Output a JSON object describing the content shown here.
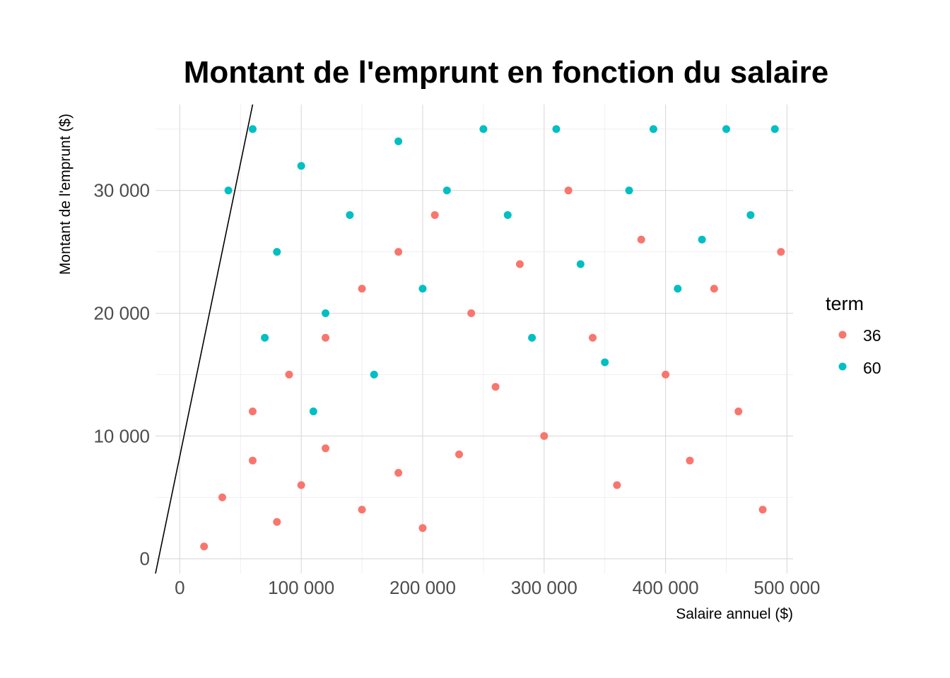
{
  "chart_data": {
    "type": "scatter",
    "title": "Montant de l'emprunt en fonction du salaire",
    "xlabel": "Salaire annuel ($)",
    "ylabel": "Montant de l'emprunt ($)",
    "xlim": [
      -20000,
      505000
    ],
    "ylim": [
      -1200,
      37000
    ],
    "x_ticks": [
      0,
      100000,
      200000,
      300000,
      400000,
      500000
    ],
    "x_tick_labels": [
      "0",
      "100 000",
      "200 000",
      "300 000",
      "400 000",
      "500 000"
    ],
    "y_ticks": [
      0,
      10000,
      20000,
      30000
    ],
    "y_tick_labels": [
      "0",
      "10 000",
      "20 000",
      "30 000"
    ],
    "grid": true,
    "legend": {
      "title": "term",
      "position": "right",
      "entries": [
        {
          "label": "36",
          "color": "#F8766D"
        },
        {
          "label": "60",
          "color": "#00BFC4"
        }
      ]
    },
    "reference_line": {
      "description": "droite noire",
      "points": [
        [
          -20000,
          -1200
        ],
        [
          60000,
          37000
        ]
      ],
      "color": "#000000"
    },
    "series": [
      {
        "name": "36",
        "color": "#F8766D",
        "values": [
          [
            20000,
            1000
          ],
          [
            35000,
            5000
          ],
          [
            60000,
            8000
          ],
          [
            80000,
            3000
          ],
          [
            100000,
            6000
          ],
          [
            120000,
            9000
          ],
          [
            150000,
            4000
          ],
          [
            180000,
            7000
          ],
          [
            200000,
            2500
          ],
          [
            230000,
            8500
          ],
          [
            60000,
            12000
          ],
          [
            90000,
            15000
          ],
          [
            120000,
            18000
          ],
          [
            150000,
            22000
          ],
          [
            180000,
            25000
          ],
          [
            210000,
            28000
          ],
          [
            240000,
            20000
          ],
          [
            260000,
            14000
          ],
          [
            280000,
            24000
          ],
          [
            300000,
            10000
          ],
          [
            320000,
            30000
          ],
          [
            340000,
            18000
          ],
          [
            360000,
            6000
          ],
          [
            380000,
            26000
          ],
          [
            400000,
            15000
          ],
          [
            420000,
            8000
          ],
          [
            440000,
            22000
          ],
          [
            460000,
            12000
          ],
          [
            480000,
            4000
          ],
          [
            495000,
            25000
          ]
        ]
      },
      {
        "name": "60",
        "color": "#00BFC4",
        "values": [
          [
            40000,
            30000
          ],
          [
            60000,
            35000
          ],
          [
            80000,
            25000
          ],
          [
            100000,
            32000
          ],
          [
            120000,
            20000
          ],
          [
            140000,
            28000
          ],
          [
            160000,
            15000
          ],
          [
            180000,
            34000
          ],
          [
            200000,
            22000
          ],
          [
            220000,
            30000
          ],
          [
            250000,
            35000
          ],
          [
            270000,
            28000
          ],
          [
            290000,
            18000
          ],
          [
            310000,
            35000
          ],
          [
            330000,
            24000
          ],
          [
            350000,
            16000
          ],
          [
            370000,
            30000
          ],
          [
            390000,
            35000
          ],
          [
            410000,
            22000
          ],
          [
            430000,
            26000
          ],
          [
            450000,
            35000
          ],
          [
            470000,
            28000
          ],
          [
            490000,
            35000
          ],
          [
            110000,
            12000
          ],
          [
            70000,
            18000
          ]
        ]
      }
    ]
  }
}
